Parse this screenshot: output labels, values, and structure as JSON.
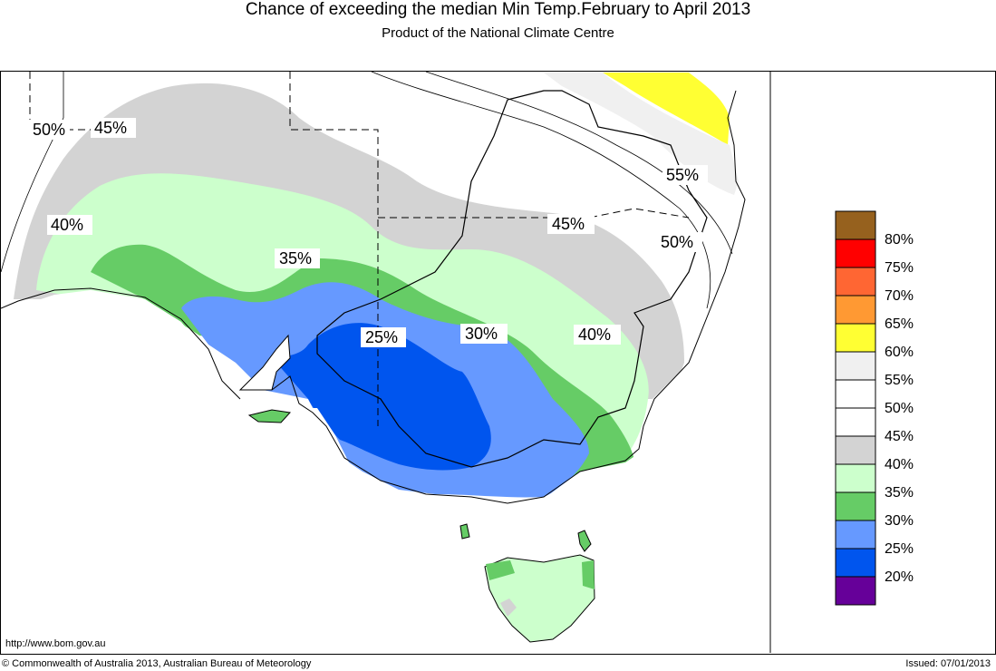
{
  "title": "Chance of exceeding the median Min Temp.February to April 2013",
  "subtitle": "Product of the National Climate Centre",
  "url": "http://www.bom.gov.au",
  "copyright": "© Commonwealth of Australia 2013, Australian Bureau of Meteorology",
  "issued": "Issued: 07/01/2013",
  "map_labels": {
    "l50_west": "50%",
    "l45_nw": "45%",
    "l40_west": "40%",
    "l35": "35%",
    "l25": "25%",
    "l30": "30%",
    "l40_east": "40%",
    "l45_east": "45%",
    "l50_east": "50%",
    "l55": "55%"
  },
  "legend": [
    {
      "label": "80%",
      "color": "#96611e"
    },
    {
      "label": "75%",
      "color": "#ff0000"
    },
    {
      "label": "70%",
      "color": "#ff6633"
    },
    {
      "label": "65%",
      "color": "#ff9933"
    },
    {
      "label": "60%",
      "color": "#ffff33"
    },
    {
      "label": "55%",
      "color": "#f0f0f0"
    },
    {
      "label": "50%",
      "color": "#ffffff"
    },
    {
      "label": "45%",
      "color": "#ffffff"
    },
    {
      "label": "40%",
      "color": "#d3d3d3"
    },
    {
      "label": "35%",
      "color": "#ccffcc"
    },
    {
      "label": "30%",
      "color": "#66cc66"
    },
    {
      "label": "25%",
      "color": "#6699ff"
    },
    {
      "label": "20%",
      "color": "#0055ee"
    },
    {
      "label": "",
      "color": "#660099"
    }
  ]
}
